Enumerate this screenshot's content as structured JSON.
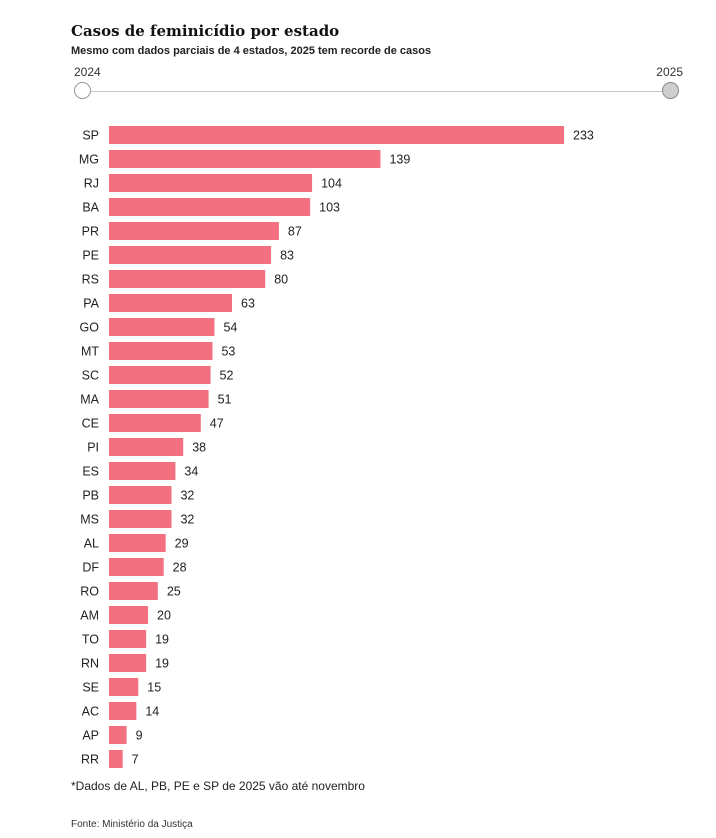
{
  "chart_data": {
    "type": "bar",
    "orientation": "horizontal",
    "title": "Casos de feminicídio por estado",
    "subtitle": "Mesmo com dados parciais de 4 estados, 2025 tem recorde de casos",
    "categories": [
      "SP",
      "MG",
      "RJ",
      "BA",
      "PR",
      "PE",
      "RS",
      "PA",
      "GO",
      "MT",
      "SC",
      "MA",
      "CE",
      "PI",
      "ES",
      "PB",
      "MS",
      "AL",
      "DF",
      "RO",
      "AM",
      "TO",
      "RN",
      "SE",
      "AC",
      "AP",
      "RR"
    ],
    "values": [
      233,
      139,
      104,
      103,
      87,
      83,
      80,
      63,
      54,
      53,
      52,
      51,
      47,
      38,
      34,
      32,
      32,
      29,
      28,
      25,
      20,
      19,
      19,
      15,
      14,
      9,
      7
    ],
    "bar_color": "#f2707f",
    "grid": false
  },
  "slider": {
    "start_label": "2024",
    "end_label": "2025",
    "selected": "2025"
  },
  "footnote": "*Dados de AL, PB, PE e SP de 2025 vão até novembro",
  "source": "Fonte: Ministério da Justiça"
}
